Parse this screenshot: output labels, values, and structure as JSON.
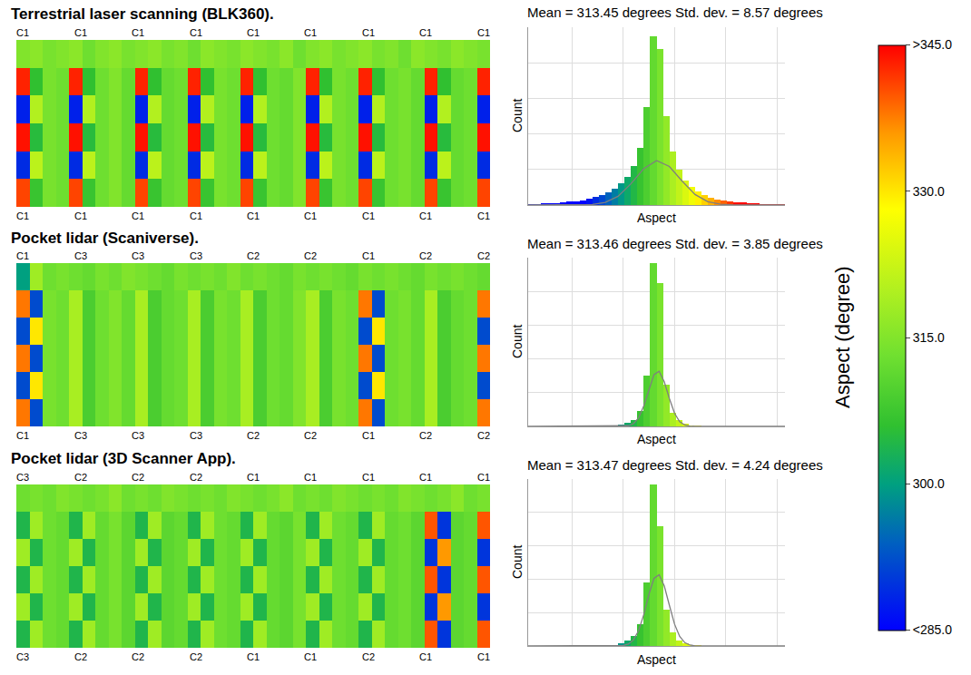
{
  "chart_data": [
    {
      "type": "heatmap",
      "title": "Terrestrial laser scanning (BLK360).",
      "top_labels": [
        "C1",
        "C1",
        "C1",
        "C1",
        "C1",
        "C1",
        "C1",
        "C1",
        "C1"
      ],
      "bottom_labels": [
        "C1",
        "C1",
        "C1",
        "C1",
        "C1",
        "C1",
        "C1",
        "C1",
        "C1"
      ],
      "tick_labels": false,
      "cells": [
        [
          315,
          316,
          314,
          315,
          316,
          313,
          315,
          316,
          314,
          315,
          316,
          314,
          315,
          313,
          316,
          315,
          314,
          316,
          315,
          314,
          316,
          313,
          315,
          316,
          314,
          315,
          316,
          314,
          315,
          313,
          316,
          315,
          314,
          316,
          315,
          314
        ],
        [
          343,
          306,
          314,
          313,
          343,
          306,
          313,
          315,
          312,
          343,
          306,
          312,
          313,
          343,
          306,
          314,
          313,
          343,
          306,
          313,
          312,
          315,
          343,
          306,
          314,
          313,
          343,
          306,
          313,
          314,
          312,
          343,
          306,
          312,
          313,
          343
        ],
        [
          288,
          320,
          314,
          313,
          288,
          320,
          313,
          315,
          312,
          288,
          320,
          312,
          313,
          288,
          320,
          314,
          313,
          288,
          320,
          313,
          312,
          315,
          288,
          320,
          314,
          313,
          288,
          320,
          313,
          314,
          312,
          288,
          320,
          312,
          313,
          288
        ],
        [
          344,
          305,
          314,
          313,
          344,
          305,
          313,
          315,
          312,
          344,
          305,
          312,
          313,
          344,
          305,
          314,
          313,
          344,
          305,
          313,
          312,
          315,
          344,
          305,
          314,
          313,
          344,
          305,
          313,
          314,
          312,
          344,
          305,
          312,
          313,
          344
        ],
        [
          289,
          321,
          314,
          313,
          289,
          321,
          313,
          315,
          312,
          289,
          321,
          312,
          313,
          289,
          321,
          314,
          313,
          289,
          321,
          313,
          312,
          315,
          289,
          321,
          314,
          313,
          289,
          321,
          313,
          314,
          312,
          289,
          321,
          312,
          313,
          289
        ],
        [
          341,
          307,
          314,
          313,
          341,
          307,
          313,
          315,
          312,
          341,
          307,
          312,
          313,
          341,
          307,
          314,
          313,
          341,
          307,
          313,
          312,
          315,
          341,
          307,
          314,
          313,
          341,
          307,
          313,
          314,
          312,
          341,
          307,
          312,
          313,
          341
        ]
      ]
    },
    {
      "type": "histogram",
      "title": "Mean = 313.45 degrees Std. dev. = 8.57 degrees",
      "xlabel": "Aspect",
      "ylabel": "Count",
      "bins": [
        263,
        265.5,
        268,
        270.5,
        273,
        275.5,
        278,
        280.5,
        283,
        285.5,
        288,
        290.5,
        293,
        295.5,
        298,
        300.5,
        303,
        305.5,
        308,
        310.5,
        313,
        315.5,
        318,
        320.5,
        323,
        325.5,
        328,
        330.5,
        333,
        335.5,
        338,
        340.5,
        343,
        345.5,
        348,
        350.5,
        353,
        355.5,
        358,
        360.5,
        363
      ],
      "counts": [
        0.5,
        0.6,
        0.8,
        1,
        1.2,
        1.5,
        1.8,
        2.2,
        2.8,
        3.5,
        4.5,
        5.5,
        7,
        9,
        12,
        16,
        22,
        32,
        55,
        95,
        88,
        50,
        30,
        20,
        14,
        10,
        7.5,
        5.5,
        4.2,
        3.2,
        2.5,
        2,
        1.6,
        1.3,
        1,
        0.8,
        0.7,
        0.6,
        0.5,
        0.4
      ],
      "fit": {
        "color": "#7f7f7f",
        "x": [
          263,
          268,
          273,
          278,
          283,
          288,
          293,
          298,
          303,
          308,
          313,
          318,
          323,
          328,
          333,
          338,
          343,
          348,
          353,
          358,
          363
        ],
        "values": [
          0,
          0,
          0,
          0,
          0.05,
          0.3,
          1.5,
          4.9,
          11.9,
          20.4,
          25,
          21.7,
          13.4,
          5.9,
          1.9,
          0.4,
          0.1,
          0,
          0,
          0,
          0
        ]
      },
      "xlim": [
        263,
        363
      ],
      "xticks": [
        280,
        300,
        320,
        340,
        360
      ],
      "ylim": [
        0,
        100
      ],
      "yticks": [
        0,
        20,
        40,
        60,
        80,
        100
      ],
      "tick_labels": false,
      "grid": true
    },
    {
      "type": "heatmap",
      "title": "Pocket lidar (Scaniverse).",
      "top_labels": [
        "C1",
        "C3",
        "C3",
        "C3",
        "C2",
        "C2",
        "C1",
        "C2",
        "C2"
      ],
      "bottom_labels": [
        "C1",
        "C3",
        "C3",
        "C3",
        "C2",
        "C2",
        "C1",
        "C2",
        "C2"
      ],
      "tick_labels": false,
      "cells": [
        [
          300,
          318,
          313,
          314,
          313,
          312,
          314,
          313,
          315,
          314,
          313,
          312,
          314,
          313,
          314,
          313,
          315,
          313,
          314,
          313,
          312,
          314,
          313,
          314,
          313,
          312,
          314,
          313,
          314,
          313,
          312,
          314,
          313,
          314,
          313,
          312
        ],
        [
          338,
          292,
          314,
          313,
          319,
          309,
          313,
          315,
          312,
          319,
          309,
          312,
          313,
          319,
          309,
          314,
          313,
          319,
          309,
          313,
          312,
          315,
          319,
          309,
          314,
          313,
          338,
          292,
          313,
          314,
          312,
          319,
          309,
          312,
          313,
          338
        ],
        [
          292,
          330,
          314,
          313,
          319,
          309,
          313,
          315,
          312,
          319,
          309,
          312,
          313,
          319,
          309,
          314,
          313,
          319,
          309,
          313,
          312,
          315,
          319,
          309,
          314,
          313,
          292,
          330,
          313,
          314,
          312,
          319,
          309,
          312,
          313,
          292
        ],
        [
          338,
          292,
          314,
          313,
          319,
          309,
          313,
          315,
          312,
          319,
          309,
          312,
          313,
          319,
          309,
          314,
          313,
          319,
          309,
          313,
          312,
          315,
          319,
          309,
          314,
          313,
          338,
          292,
          313,
          314,
          312,
          319,
          309,
          312,
          313,
          338
        ],
        [
          292,
          330,
          314,
          313,
          319,
          309,
          313,
          315,
          312,
          319,
          309,
          312,
          313,
          319,
          309,
          314,
          313,
          319,
          309,
          313,
          312,
          315,
          319,
          309,
          314,
          313,
          292,
          330,
          313,
          314,
          312,
          319,
          309,
          312,
          313,
          292
        ],
        [
          338,
          292,
          314,
          313,
          319,
          309,
          313,
          315,
          312,
          319,
          309,
          312,
          313,
          319,
          309,
          314,
          313,
          319,
          309,
          313,
          312,
          315,
          319,
          309,
          314,
          313,
          338,
          292,
          313,
          314,
          312,
          319,
          309,
          312,
          313,
          338
        ]
      ]
    },
    {
      "type": "histogram",
      "title": "Mean = 313.46 degrees Std. dev. = 3.85 degrees",
      "xlabel": "Aspect",
      "ylabel": "Count",
      "bins": [
        263,
        265.5,
        268,
        270.5,
        273,
        275.5,
        278,
        280.5,
        283,
        285.5,
        288,
        290.5,
        293,
        295.5,
        298,
        300.5,
        303,
        305.5,
        308,
        310.5,
        313,
        315.5,
        318,
        320.5,
        323,
        325.5,
        328,
        330.5,
        333,
        335.5,
        338,
        340.5,
        343,
        345.5,
        348,
        350.5,
        353,
        355.5,
        358,
        360.5,
        363
      ],
      "counts": [
        0,
        0,
        0,
        0,
        0,
        0,
        0,
        0,
        0,
        0,
        0,
        0,
        0.2,
        0.5,
        1,
        2,
        4,
        9,
        30,
        97,
        85,
        25,
        8,
        3.5,
        1.5,
        0.8,
        0.4,
        0.2,
        0,
        0,
        0,
        0,
        0,
        0,
        0,
        0,
        0,
        0,
        0,
        0
      ],
      "fit": {
        "color": "#7f7f7f",
        "x": [
          263,
          298,
          300,
          302,
          304,
          306,
          308,
          310,
          312,
          314,
          316,
          318,
          320,
          322,
          324,
          326,
          328,
          363
        ],
        "values": [
          0,
          0.01,
          0.07,
          0.4,
          1.6,
          5,
          12.1,
          22,
          30.7,
          32.7,
          26.5,
          16.5,
          7.8,
          2.8,
          0.8,
          0.2,
          0.03,
          0
        ]
      },
      "xlim": [
        263,
        363
      ],
      "xticks": [
        280,
        300,
        320,
        340,
        360
      ],
      "ylim": [
        0,
        100
      ],
      "yticks": [
        0,
        20,
        40,
        60,
        80,
        100
      ],
      "tick_labels": false,
      "grid": true
    },
    {
      "type": "heatmap",
      "title": "Pocket lidar (3D Scanner App).",
      "top_labels": [
        "C3",
        "C2",
        "C2",
        "C2",
        "C1",
        "C1",
        "C1",
        "C1",
        "C1"
      ],
      "bottom_labels": [
        "C3",
        "C2",
        "C2",
        "C2",
        "C1",
        "C1",
        "C2",
        "C1",
        "C1"
      ],
      "tick_labels": false,
      "cells": [
        [
          313,
          314,
          313,
          315,
          314,
          313,
          314,
          316,
          313,
          314,
          313,
          315,
          314,
          313,
          314,
          313,
          315,
          314,
          313,
          314,
          316,
          313,
          314,
          313,
          315,
          314,
          313,
          314,
          313,
          315,
          314,
          313,
          314,
          316,
          313,
          314
        ],
        [
          304,
          318,
          313,
          312,
          304,
          318,
          312,
          314,
          311,
          304,
          318,
          311,
          312,
          304,
          318,
          313,
          312,
          304,
          318,
          312,
          311,
          314,
          304,
          318,
          313,
          312,
          304,
          318,
          312,
          313,
          311,
          340,
          290,
          311,
          312,
          340
        ],
        [
          318,
          304,
          313,
          312,
          318,
          304,
          312,
          314,
          311,
          318,
          304,
          311,
          312,
          318,
          304,
          313,
          312,
          318,
          304,
          312,
          311,
          314,
          318,
          304,
          313,
          312,
          318,
          304,
          312,
          313,
          311,
          290,
          336,
          311,
          312,
          290
        ],
        [
          304,
          318,
          313,
          312,
          304,
          318,
          312,
          314,
          311,
          304,
          318,
          311,
          312,
          304,
          318,
          313,
          312,
          304,
          318,
          312,
          311,
          314,
          304,
          318,
          313,
          312,
          304,
          318,
          312,
          313,
          311,
          340,
          290,
          311,
          312,
          340
        ],
        [
          318,
          304,
          313,
          312,
          318,
          304,
          312,
          314,
          311,
          318,
          304,
          311,
          312,
          318,
          304,
          313,
          312,
          318,
          304,
          312,
          311,
          314,
          318,
          304,
          313,
          312,
          318,
          304,
          312,
          313,
          311,
          290,
          336,
          311,
          312,
          290
        ],
        [
          304,
          318,
          313,
          312,
          304,
          318,
          312,
          314,
          311,
          304,
          318,
          311,
          312,
          304,
          318,
          313,
          312,
          304,
          318,
          312,
          311,
          314,
          304,
          318,
          313,
          312,
          304,
          318,
          312,
          313,
          311,
          340,
          290,
          311,
          312,
          340
        ]
      ]
    },
    {
      "type": "histogram",
      "title": "Mean = 313.47 degrees Std. dev. = 4.24 degrees",
      "xlabel": "Aspect",
      "ylabel": "Count",
      "bins": [
        263,
        265.5,
        268,
        270.5,
        273,
        275.5,
        278,
        280.5,
        283,
        285.5,
        288,
        290.5,
        293,
        295.5,
        298,
        300.5,
        303,
        305.5,
        308,
        310.5,
        313,
        315.5,
        318,
        320.5,
        323,
        325.5,
        328,
        330.5,
        333,
        335.5,
        338,
        340.5,
        343,
        345.5,
        348,
        350.5,
        353,
        355.5,
        358,
        360.5,
        363
      ],
      "counts": [
        0,
        0,
        0,
        0,
        0,
        0,
        0,
        0,
        0,
        0,
        0,
        0.2,
        0.4,
        0.8,
        1.5,
        3,
        6,
        13,
        38,
        97,
        72,
        22,
        8,
        3.5,
        1.6,
        0.8,
        0.4,
        0.2,
        0,
        0,
        0,
        0,
        0,
        0,
        0,
        0,
        0,
        0,
        0,
        0
      ],
      "fit": {
        "color": "#7f7f7f",
        "x": [
          263,
          298,
          300,
          302,
          304,
          306,
          308,
          310,
          312,
          314,
          316,
          318,
          320,
          322,
          324,
          326,
          328,
          363
        ],
        "values": [
          0,
          0.06,
          0.28,
          1.1,
          3.6,
          9.1,
          18.7,
          30.8,
          40.5,
          42.7,
          36,
          24.3,
          13.1,
          5.7,
          2,
          0.55,
          0.12,
          0
        ]
      },
      "xlim": [
        263,
        363
      ],
      "xticks": [
        280,
        300,
        320,
        340,
        360
      ],
      "ylim": [
        0,
        100
      ],
      "yticks": [
        0,
        20,
        40,
        60,
        80,
        100
      ],
      "tick_labels": false,
      "grid": true
    }
  ],
  "color_bar": {
    "title": "Aspect (degree)",
    "range": [
      285,
      345
    ],
    "ticks": [
      {
        "value": 285,
        "label": "<285.0"
      },
      {
        "value": 300,
        "label": "300.0"
      },
      {
        "value": 315,
        "label": "315.0"
      },
      {
        "value": 330,
        "label": "330.0"
      },
      {
        "value": 345,
        "label": ">345.0"
      }
    ]
  }
}
